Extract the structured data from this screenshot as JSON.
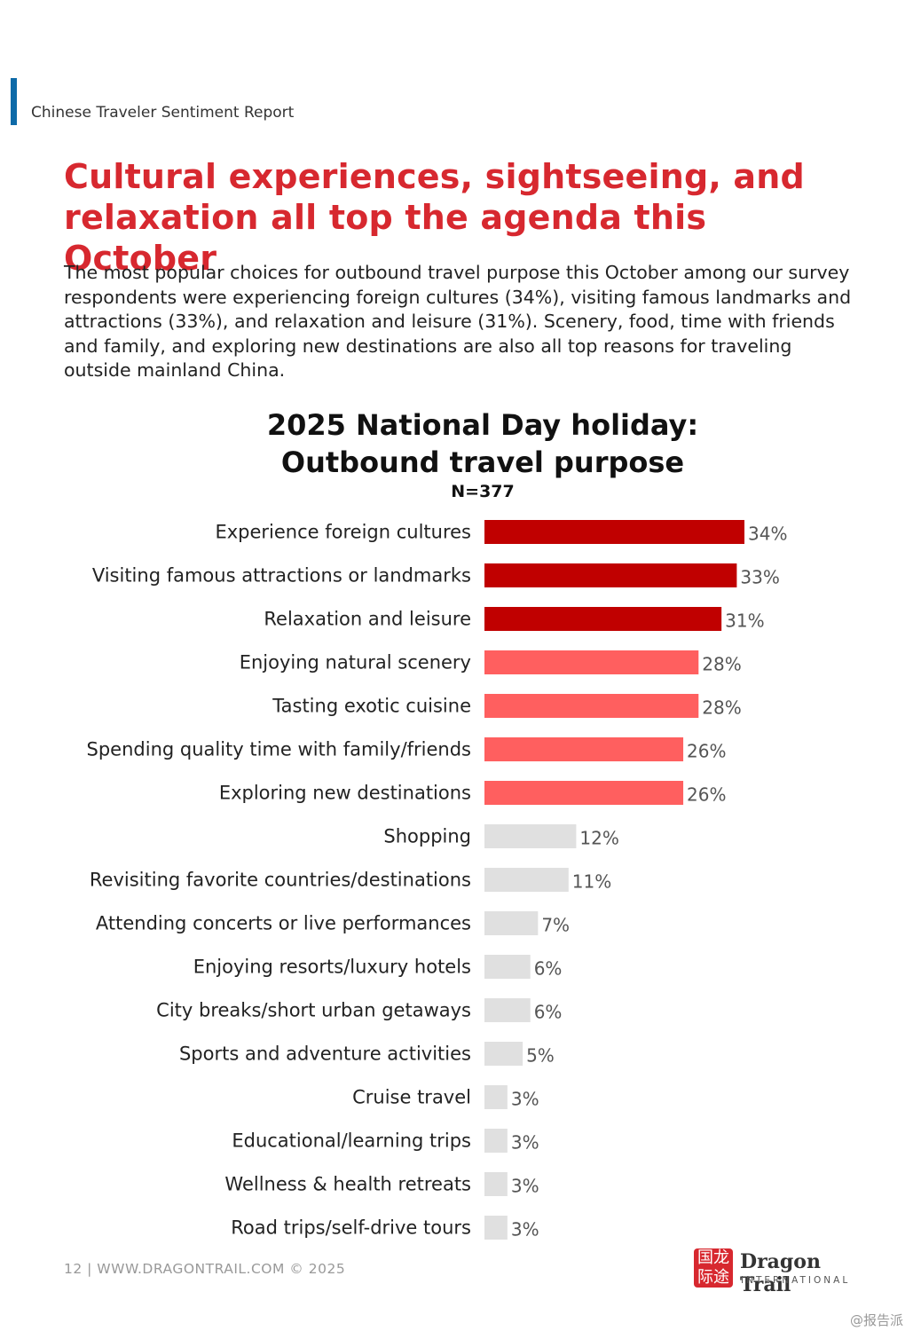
{
  "header": {
    "report_title": "Chinese Traveler Sentiment Report"
  },
  "headline": {
    "line1": "Cultural experiences, sightseeing, and",
    "line2": "relaxation all top the agenda this October"
  },
  "intro": "The most popular choices for outbound travel purpose this October among our survey respondents were experiencing foreign cultures (34%), visiting famous landmarks and attractions (33%), and relaxation and leisure (31%). Scenery, food, time with friends and family, and exploring new destinations are also all top reasons for traveling outside mainland China.",
  "chart_data": {
    "type": "bar",
    "orientation": "horizontal",
    "title_line1": "2025 National Day holiday:",
    "title_line2": "Outbound travel purpose",
    "subtitle": "N=377",
    "categories": [
      "Experience foreign cultures",
      "Visiting famous attractions or landmarks",
      "Relaxation and leisure",
      "Enjoying natural scenery",
      "Tasting exotic cuisine",
      "Spending quality time with family/friends",
      "Exploring new destinations",
      "Shopping",
      "Revisiting favorite countries/destinations",
      "Attending concerts or live performances",
      "Enjoying resorts/luxury hotels",
      "City breaks/short urban getaways",
      "Sports and adventure activities",
      "Cruise travel",
      "Educational/learning trips",
      "Wellness & health retreats",
      "Road trips/self-drive tours"
    ],
    "values": [
      34,
      33,
      31,
      28,
      28,
      26,
      26,
      12,
      11,
      7,
      6,
      6,
      5,
      3,
      3,
      3,
      3
    ],
    "labels": [
      "34%",
      "33%",
      "31%",
      "28%",
      "28%",
      "26%",
      "26%",
      "12%",
      "11%",
      "7%",
      "6%",
      "6%",
      "5%",
      "3%",
      "3%",
      "3%",
      "3%"
    ],
    "tiers": [
      "top",
      "top",
      "top",
      "mid",
      "mid",
      "mid",
      "mid",
      "low",
      "low",
      "low",
      "low",
      "low",
      "low",
      "low",
      "low",
      "low",
      "low"
    ],
    "colors": {
      "top": "#c00000",
      "mid": "#ff5f5f",
      "low": "#e0e0e0"
    },
    "xlim": [
      0,
      34
    ],
    "unit": "%"
  },
  "footer": {
    "text": "12  |  WWW.DRAGONTRAIL.COM ©  2025"
  },
  "logo": {
    "seal": "国龙际途",
    "name": "Dragon Trail",
    "sub": "INTERNATIONAL"
  },
  "watermark": "@报告派"
}
